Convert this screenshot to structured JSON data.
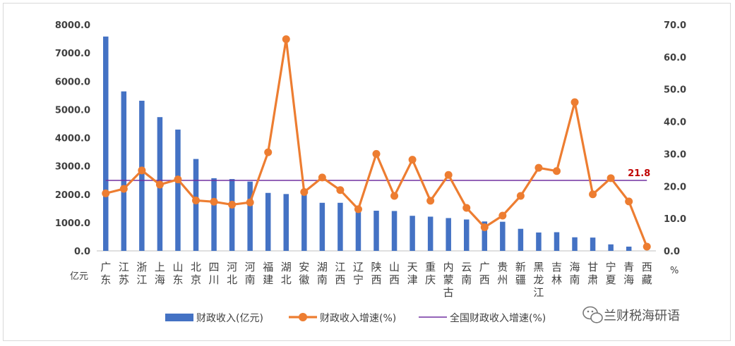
{
  "chart_data": {
    "type": "bar",
    "categories": [
      "广东",
      "江苏",
      "浙江",
      "上海",
      "山东",
      "北京",
      "四川",
      "河北",
      "河南",
      "福建",
      "湖北",
      "安徽",
      "湖南",
      "江西",
      "辽宁",
      "陕西",
      "山西",
      "天津",
      "重庆",
      "内蒙古",
      "云南",
      "广西",
      "贵州",
      "新疆",
      "黑龙江",
      "吉林",
      "海南",
      "甘肃",
      "宁夏",
      "青海",
      "西藏"
    ],
    "series": [
      {
        "name": "财政收入(亿元)",
        "type": "bar",
        "axis": "left",
        "color": "#4472c4",
        "values": [
          7580,
          5640,
          5310,
          4730,
          4290,
          3250,
          2570,
          2540,
          2450,
          2050,
          2010,
          2030,
          1700,
          1700,
          1370,
          1420,
          1410,
          1240,
          1210,
          1160,
          1110,
          1040,
          1030,
          780,
          650,
          660,
          480,
          470,
          230,
          150,
          0
        ]
      },
      {
        "name": "财政收入增速(%)",
        "type": "line",
        "axis": "right",
        "color": "#ed7d31",
        "values": [
          17.8,
          19.2,
          24.9,
          20.5,
          22.1,
          15.6,
          15.2,
          14.3,
          15.0,
          30.5,
          65.5,
          18.2,
          22.7,
          18.8,
          12.9,
          30.0,
          17.0,
          28.2,
          15.5,
          23.5,
          13.3,
          7.3,
          10.9,
          17.0,
          25.7,
          24.7,
          46.0,
          17.5,
          22.5,
          15.3,
          1.3
        ]
      },
      {
        "name": "全国财政收入增速(%)",
        "type": "reference",
        "axis": "right",
        "color": "#7030a0",
        "value": 21.8
      }
    ],
    "left_axis": {
      "unit": "亿元",
      "ylim": [
        0,
        8000
      ],
      "ticks": [
        "0.0",
        "1000.0",
        "2000.0",
        "3000.0",
        "4000.0",
        "5000.0",
        "6000.0",
        "7000.0",
        "8000.0"
      ]
    },
    "right_axis": {
      "unit": "%",
      "ylim": [
        0,
        70
      ],
      "ticks": [
        "0.0",
        "10.0",
        "20.0",
        "30.0",
        "40.0",
        "50.0",
        "60.0",
        "70.0"
      ]
    },
    "reference_label": "21.8",
    "legend_position": "bottom",
    "grid": false
  },
  "watermark": "兰财税海研语"
}
